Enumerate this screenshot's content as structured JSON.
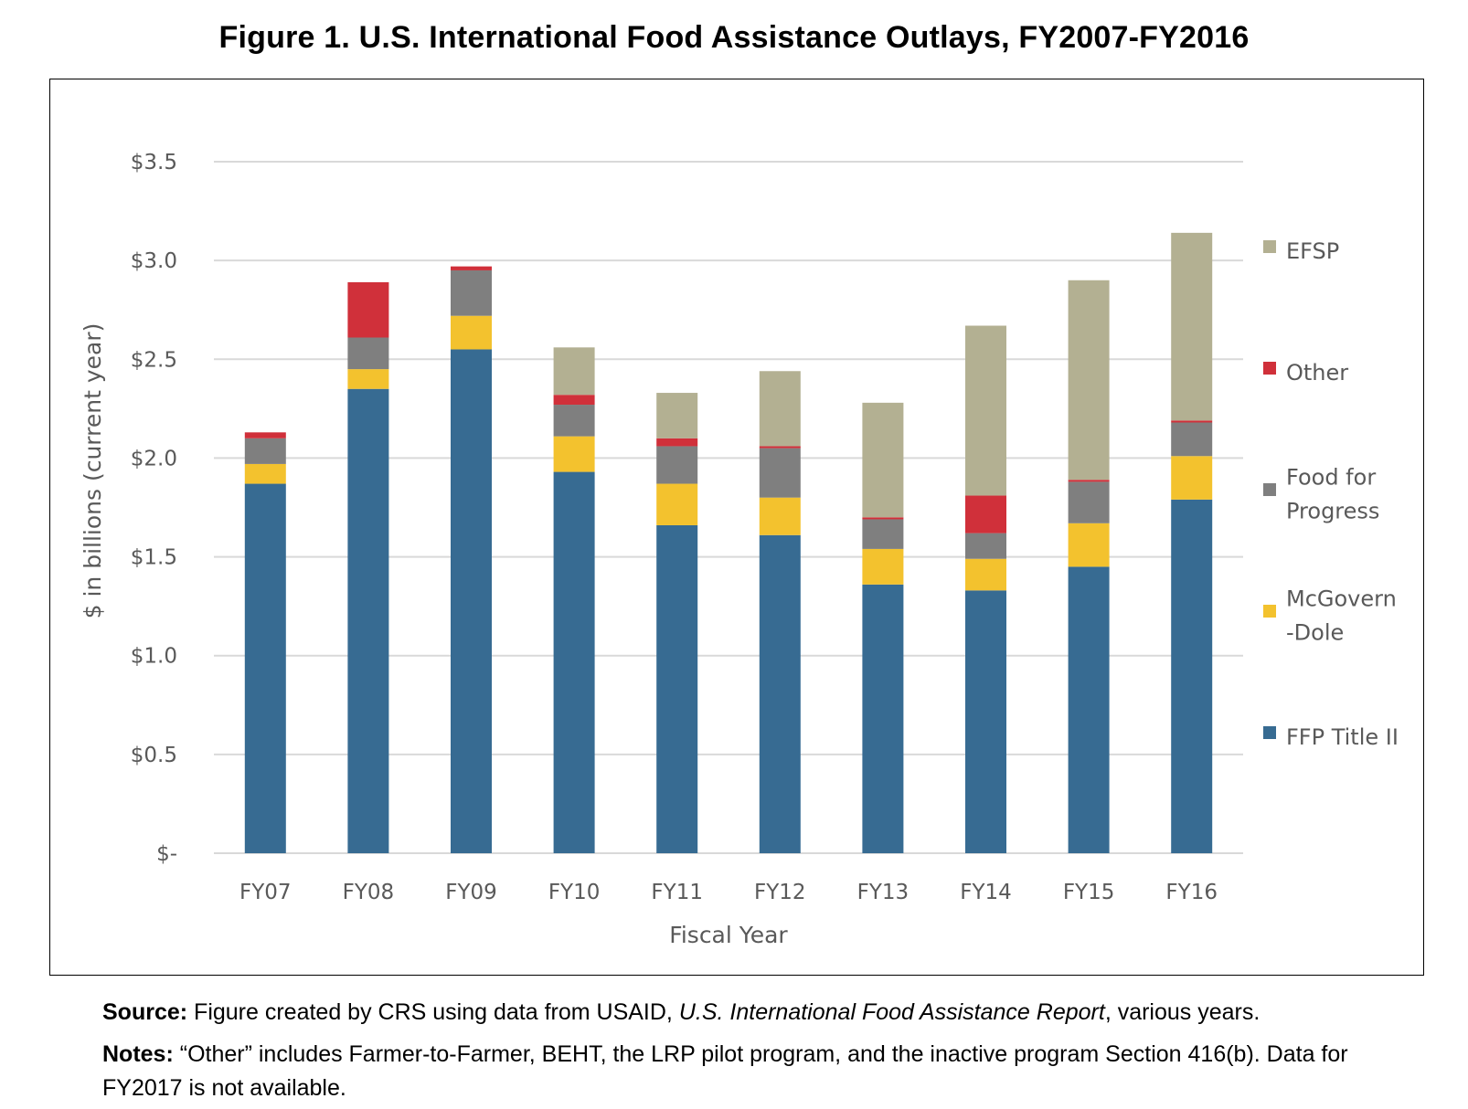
{
  "title": "Figure 1. U.S. International Food Assistance Outlays, FY2007-FY2016",
  "source": {
    "label": "Source:",
    "text_before": "Figure created by CRS using data from USAID,",
    "italic": "U.S. International Food Assistance Report",
    "text_after": ", various years."
  },
  "notes": {
    "label": "Notes:",
    "text": "“Other” includes Farmer-to-Farmer, BEHT, the LRP pilot program, and the inactive program Section 416(b). Data for FY2017 is not available."
  },
  "chart_data": {
    "type": "bar",
    "stacked": true,
    "xlabel": "Fiscal Year",
    "ylabel": "$ in billions (current year)",
    "ylim": [
      0,
      3.5
    ],
    "yticks": [
      0,
      0.5,
      1.0,
      1.5,
      2.0,
      2.5,
      3.0,
      3.5
    ],
    "ytick_labels": [
      "$-",
      "$0.5",
      "$1.0",
      "$1.5",
      "$2.0",
      "$2.5",
      "$3.0",
      "$3.5"
    ],
    "grid": "horizontal",
    "legend_position": "right",
    "categories": [
      "FY07",
      "FY08",
      "FY09",
      "FY10",
      "FY11",
      "FY12",
      "FY13",
      "FY14",
      "FY15",
      "FY16"
    ],
    "series": [
      {
        "name": "FFP Title II",
        "color": "#376B92",
        "values": [
          1.87,
          2.35,
          2.55,
          1.93,
          1.66,
          1.61,
          1.36,
          1.33,
          1.45,
          1.79
        ]
      },
      {
        "name": "McGovern-Dole",
        "legend_lines": [
          "McGovern",
          "-Dole"
        ],
        "color": "#F3C22E",
        "values": [
          0.1,
          0.1,
          0.17,
          0.18,
          0.21,
          0.19,
          0.18,
          0.16,
          0.22,
          0.22
        ]
      },
      {
        "name": "Food for Progress",
        "legend_lines": [
          "Food for",
          "Progress"
        ],
        "color": "#7F7F7F",
        "values": [
          0.13,
          0.16,
          0.23,
          0.16,
          0.19,
          0.25,
          0.15,
          0.13,
          0.21,
          0.17
        ]
      },
      {
        "name": "Other",
        "color": "#D0303A",
        "values": [
          0.03,
          0.28,
          0.02,
          0.05,
          0.04,
          0.01,
          0.01,
          0.19,
          0.01,
          0.01
        ]
      },
      {
        "name": "EFSP",
        "color": "#B3B092",
        "values": [
          0,
          0,
          0,
          0.24,
          0.23,
          0.38,
          0.58,
          0.86,
          1.01,
          0.95
        ]
      }
    ]
  }
}
